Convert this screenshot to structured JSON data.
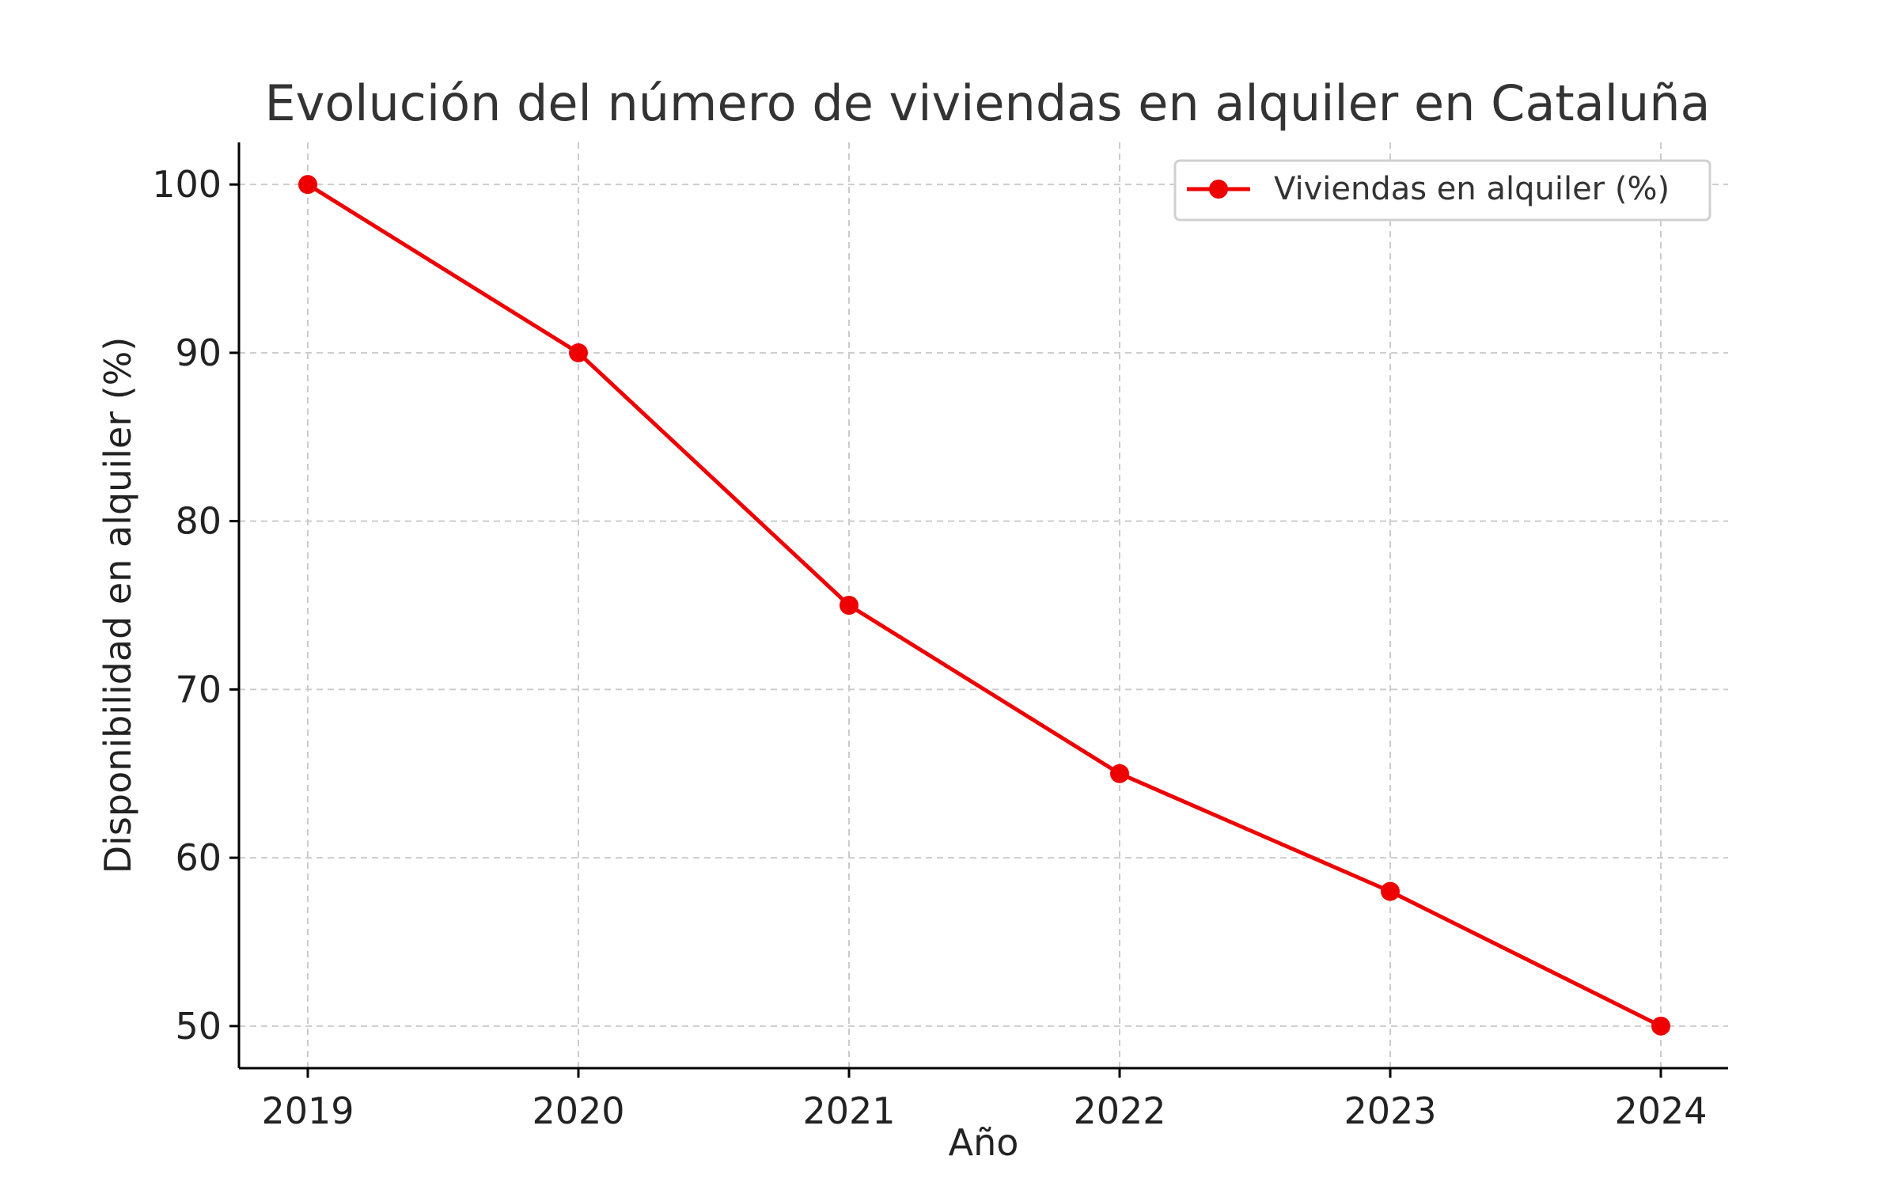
{
  "chart_data": {
    "type": "line",
    "title": "Evolución del número de viviendas en alquiler en Cataluña",
    "xlabel": "Año",
    "ylabel": "Disponibilidad en alquiler (%)",
    "categories": [
      "2019",
      "2020",
      "2021",
      "2022",
      "2023",
      "2024"
    ],
    "series": [
      {
        "name": "Viviendas en alquiler (%)",
        "values": [
          100,
          90,
          75,
          65,
          58,
          50
        ],
        "color": "#ee0000"
      }
    ],
    "yticks": [
      50,
      60,
      70,
      80,
      90,
      100
    ],
    "ylim": [
      47.5,
      102.5
    ],
    "grid": true,
    "legend_position": "top-right"
  }
}
